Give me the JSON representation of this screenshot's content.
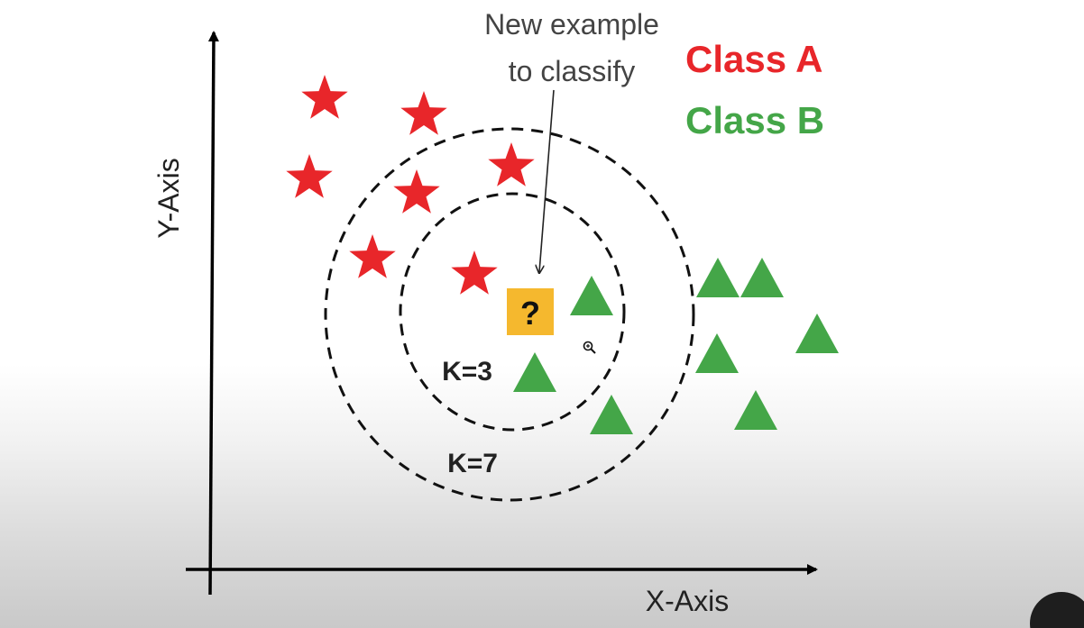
{
  "axes": {
    "x_label": "X-Axis",
    "y_label": "Y-Axis"
  },
  "legend": {
    "class_a": "Class A",
    "class_b": "Class B"
  },
  "annotation": {
    "line1": "New example",
    "line2": "to classify"
  },
  "query_point": {
    "symbol": "?"
  },
  "circles": {
    "inner_label": "K=3",
    "outer_label": "K=7"
  },
  "colors": {
    "class_a": "#e8262a",
    "class_b": "#44a648",
    "query": "#f5b82e",
    "axis": "#000000",
    "annotation_text": "#444444"
  },
  "icons": {
    "class_a_marker": "star-icon",
    "class_b_marker": "triangle-icon",
    "cursor": "zoom-cursor-icon"
  }
}
